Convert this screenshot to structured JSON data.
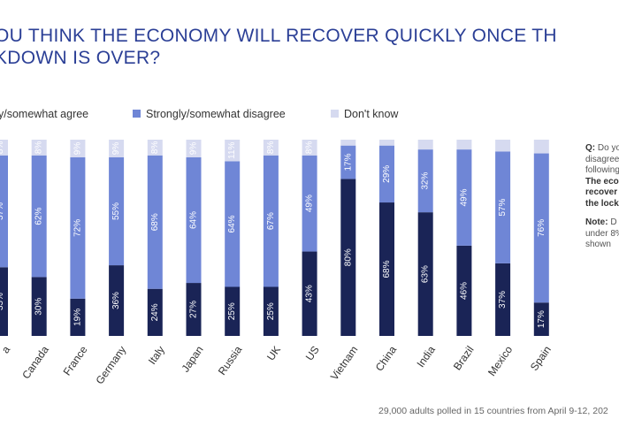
{
  "title": {
    "line1": "OU THINK THE ECONOMY WILL RECOVER QUICKLY ONCE TH",
    "line2": "KDOWN IS OVER?"
  },
  "legend": [
    {
      "label": "y/somewhat agree",
      "color": "#1a2456"
    },
    {
      "label": "Strongly/somewhat disagree",
      "color": "#6f86d6"
    },
    {
      "label": "Don't know",
      "color": "#d6daf0"
    }
  ],
  "side_note": {
    "q_label": "Q:",
    "q_text_1": "Do yo",
    "q_text_2": "disagree",
    "q_text_3": "following",
    "q_bold_1": "The eco",
    "q_bold_2": "recover",
    "q_bold_3": "the lock",
    "note_label": "Note:",
    "note_text_1": "D",
    "note_text_2": "under 8%",
    "note_text_3": "shown"
  },
  "footnote": "29,000 adults polled in 15 countries from April 9-12, 202",
  "chart_data": {
    "type": "bar",
    "stacked": true,
    "orientation": "vertical",
    "categories": [
      "a",
      "Canada",
      "France",
      "Germany",
      "Italy",
      "Japan",
      "Russia",
      "UK",
      "US",
      "Vietnam",
      "China",
      "India",
      "Brazil",
      "Mexico",
      "Spain"
    ],
    "series": [
      {
        "name": "Strongly/somewhat agree",
        "color": "#1a2456",
        "values": [
          35,
          30,
          19,
          36,
          24,
          27,
          25,
          25,
          43,
          80,
          68,
          63,
          46,
          37,
          17
        ],
        "labels": [
          "35%",
          "30%",
          "19%",
          "36%",
          "24%",
          "27%",
          "25%",
          "25%",
          "43%",
          "80%",
          "68%",
          "63%",
          "46%",
          "37%",
          "17%"
        ]
      },
      {
        "name": "Strongly/somewhat disagree",
        "color": "#6f86d6",
        "values": [
          57,
          62,
          72,
          55,
          68,
          64,
          64,
          67,
          49,
          17,
          29,
          32,
          49,
          57,
          76
        ],
        "labels": [
          "57%",
          "62%",
          "72%",
          "55%",
          "68%",
          "64%",
          "64%",
          "67%",
          "49%",
          "17%",
          "29%",
          "32%",
          "49%",
          "57%",
          "76%"
        ]
      },
      {
        "name": "Don't know",
        "color": "#d6daf0",
        "values": [
          8,
          8,
          9,
          9,
          8,
          9,
          11,
          8,
          8,
          3,
          3,
          5,
          5,
          6,
          7
        ],
        "labels": [
          "8%",
          "8%",
          "9%",
          "9%",
          "8%",
          "9%",
          "11%",
          "8%",
          "8%",
          "",
          "",
          "",
          "",
          "",
          ""
        ]
      }
    ],
    "ylim": [
      0,
      100
    ]
  }
}
